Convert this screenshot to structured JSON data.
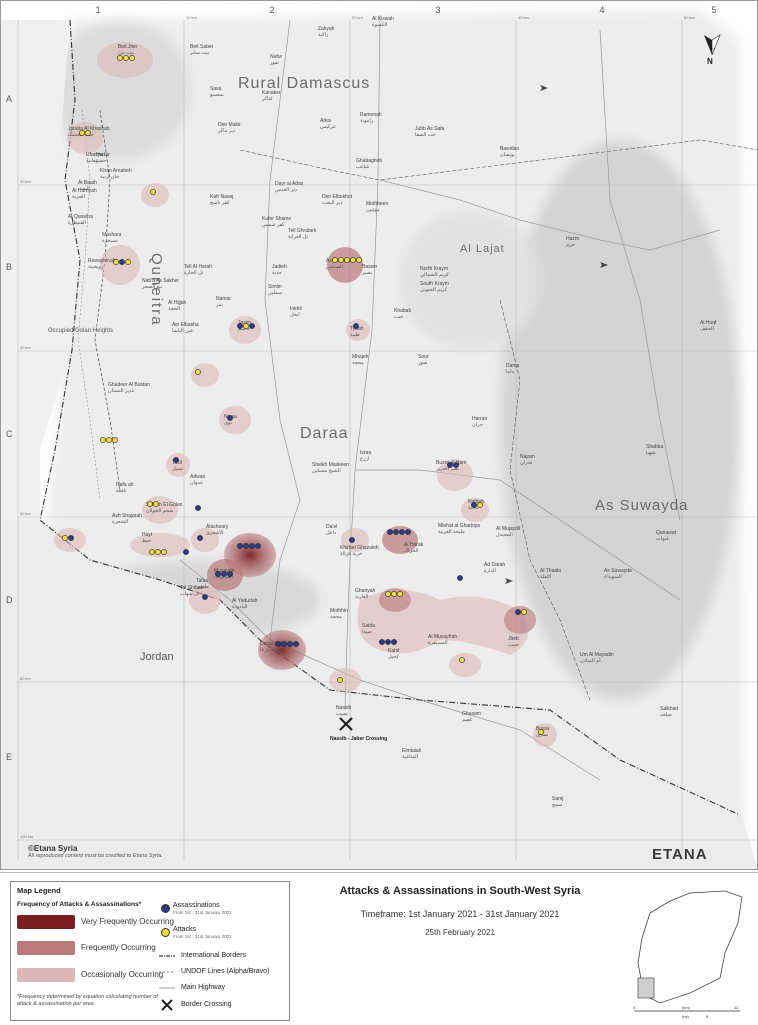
{
  "map": {
    "grid_cols": [
      "1",
      "2",
      "3",
      "4",
      "5"
    ],
    "grid_rows": [
      "A",
      "B",
      "C",
      "D",
      "E"
    ],
    "km_top": [
      "10 km",
      "20 km",
      "40 km",
      "60 km"
    ],
    "km_side": [
      "20 km",
      "40 km",
      "60 km",
      "80 km",
      "100 km"
    ],
    "regions": [
      "Rural Damascus",
      "Quneitra",
      "Daraa",
      "As Suwayda",
      "Al Lajat",
      "Jordan",
      "Occupied Golan Heights"
    ],
    "places": [
      {
        "en": "Beit Jinn",
        "ar": "بيت جن"
      },
      {
        "en": "Beit Saber",
        "ar": "بيت سابر"
      },
      {
        "en": "Zakyah",
        "ar": "زاكية"
      },
      {
        "en": "Al Kiswah",
        "ar": "الكسوة"
      },
      {
        "en": "Nufur",
        "ar": "نفور"
      },
      {
        "en": "Kanaker",
        "ar": "كناكر"
      },
      {
        "en": "Sasa",
        "ar": "سعسع"
      },
      {
        "en": "Deir Makir",
        "ar": "دير ماكر"
      },
      {
        "en": "Arkis",
        "ar": "عركيس"
      },
      {
        "en": "Ramonah",
        "ar": "رامونة"
      },
      {
        "en": "Jubb As Safa",
        "ar": "جب الصفا"
      },
      {
        "en": "Bawidan",
        "ar": "بويضان"
      },
      {
        "en": "Jubata Al Khashab",
        "ar": "جباتا الخشب"
      },
      {
        "en": "Ufaniya",
        "ar": "عفانية"
      },
      {
        "en": "Ghabagheb",
        "ar": "غباغب"
      },
      {
        "en": "Hadar",
        "ar": "حضر"
      },
      {
        "en": "Khan Arnabeh",
        "ar": "خان أرنبة"
      },
      {
        "en": "Al Hurriyah",
        "ar": "الحرية"
      },
      {
        "en": "Al Baath",
        "ar": "البعث"
      },
      {
        "en": "Kafr Nasej",
        "ar": "كفر ناسج"
      },
      {
        "en": "Dayr al Adas",
        "ar": "دير العدس"
      },
      {
        "en": "Deir Elbokhot",
        "ar": "دير البخت"
      },
      {
        "en": "Mothbeen",
        "ar": "موثبين"
      },
      {
        "en": "Al Quneitra",
        "ar": "القنيطرة"
      },
      {
        "en": "Mashara",
        "ar": "مسحرة"
      },
      {
        "en": "Kufer Shams",
        "ar": "كفر شمس"
      },
      {
        "en": "Tell Ghrabeh",
        "ar": "تل الغرابة"
      },
      {
        "en": "As Sanamayn",
        "ar": "الصنمين"
      },
      {
        "en": "Basser",
        "ar": "بصير"
      },
      {
        "en": "North Kraym",
        "ar": "كريم الشمالي"
      },
      {
        "en": "South Kraym",
        "ar": "كريم الجنوبي"
      },
      {
        "en": "Hazm",
        "ar": "حزم"
      },
      {
        "en": "Ruwayhinah",
        "ar": "رويحينة"
      },
      {
        "en": "Nab'a As Sakher",
        "ar": "نبع الصخر"
      },
      {
        "en": "Tell Al Harah",
        "ar": "تل الحارة"
      },
      {
        "en": "Jadieh",
        "ar": "جدية"
      },
      {
        "en": "Simlin",
        "ar": "سملين"
      },
      {
        "en": "Namar",
        "ar": "نمر"
      },
      {
        "en": "Inkhil",
        "ar": "انخل"
      },
      {
        "en": "Khabab",
        "ar": "خبب"
      },
      {
        "en": "Al Hijjah",
        "ar": "الحجة"
      },
      {
        "en": "Jasim",
        "ar": "جاسم"
      },
      {
        "en": "Tybah",
        "ar": "طيبة"
      },
      {
        "en": "Ain Elbasha",
        "ar": "عين الباشا"
      },
      {
        "en": "Mhajeh",
        "ar": "محجة"
      },
      {
        "en": "Sour",
        "ar": "صور"
      },
      {
        "en": "Dama",
        "ar": "داما"
      },
      {
        "en": "Al Huqf",
        "ar": "الحقف"
      },
      {
        "en": "Ghadeer Al Bustan",
        "ar": "غدير البستان"
      },
      {
        "en": "Nawa",
        "ar": "نوى"
      },
      {
        "en": "Al Yadudah",
        "ar": "اليادودة"
      },
      {
        "en": "Sheikh Maskeen",
        "ar": "الشيخ مسكين"
      },
      {
        "en": "Izraa",
        "ar": "ازرع"
      },
      {
        "en": "Harran",
        "ar": "حران"
      },
      {
        "en": "Najran",
        "ar": "نجران"
      },
      {
        "en": "Shahba",
        "ar": "شهبا"
      },
      {
        "en": "Tasil",
        "ar": "تسيل"
      },
      {
        "en": "Adwan",
        "ar": "عدوان"
      },
      {
        "en": "Nafa ah",
        "ar": "نافعة"
      },
      {
        "en": "Saham El Golan",
        "ar": "سحم الجولان"
      },
      {
        "en": "Ash Shajarah",
        "ar": "الشجرة"
      },
      {
        "en": "Busra al Harir",
        "ar": "بصر الحرير"
      },
      {
        "en": "Mlehat al Gharbiya",
        "ar": "مليحة الغربية"
      },
      {
        "en": "Da'el",
        "ar": "داعل"
      },
      {
        "en": "Khirbet Ghazaleh",
        "ar": "خربة غزالة"
      },
      {
        "en": "Hayt",
        "ar": "حيط"
      },
      {
        "en": "Alasheary",
        "ar": "الأشعري"
      },
      {
        "en": "Tafas",
        "ar": "طفس"
      },
      {
        "en": "Muzayrib",
        "ar": "المزيريب"
      },
      {
        "en": "Tal Shihab",
        "ar": "تل شهاب"
      },
      {
        "en": "Al Harak",
        "ar": "الحراك"
      },
      {
        "en": "Ghariyah",
        "ar": "الغارية"
      },
      {
        "en": "Nahtah",
        "ar": "ناحتة"
      },
      {
        "en": "Al Mujaydil",
        "ar": "المجيدل"
      },
      {
        "en": "Ad Darah",
        "ar": "الدارة"
      },
      {
        "en": "Al Thaala",
        "ar": "الثعلة"
      },
      {
        "en": "As Suwayda",
        "ar": "السويداء"
      },
      {
        "en": "Qanawat",
        "ar": "قنوات"
      },
      {
        "en": "Daraa City",
        "ar": "مدينة درعا"
      },
      {
        "en": "Saida",
        "ar": "صيدا"
      },
      {
        "en": "Kahil",
        "ar": "كحيل"
      },
      {
        "en": "Al Musayfrah",
        "ar": "المسيفرة"
      },
      {
        "en": "Jbeb",
        "ar": "جبيب"
      },
      {
        "en": "Salkhad",
        "ar": "صلخد"
      },
      {
        "en": "Um Al Mayadin",
        "ar": "أم المياذن"
      },
      {
        "en": "Nassib",
        "ar": "نصيب"
      },
      {
        "en": "Ghasam",
        "ar": "غصم"
      },
      {
        "en": "Busra",
        "ar": "بصرى"
      },
      {
        "en": "Elmtaiah",
        "ar": "المتاعية"
      },
      {
        "en": "Samj",
        "ar": "سمج"
      },
      {
        "en": "Mothhin",
        "ar": "محجة"
      }
    ],
    "crossing_label": "Nassib - Jaber Crossing",
    "north_label": "N"
  },
  "copyright": {
    "title": "©Etana Syria",
    "note": "All reproduced content must be credited to Etana Syria."
  },
  "logo_text": "ETANA",
  "legend": {
    "title": "Map Legend",
    "frequency_title": "Frequency of Attacks & Assassinations*",
    "levels": [
      {
        "label": "Very Frequently Occurring",
        "color": "#7a1f22"
      },
      {
        "label": "Frequently Occurring",
        "color": "#b97a7c"
      },
      {
        "label": "Occasionally Occurring",
        "color": "#dcb7b8"
      }
    ],
    "note": "*Frequency determined by equation calculating number of attack & assassination per area.",
    "assassinations_label": "Assassinations",
    "assassinations_sub": "From 1st - 31st January 2021",
    "attacks_label": "Attacks",
    "attacks_sub": "From 1st - 31st January 2021",
    "borders_label": "International Borders",
    "undof_label": "UNDOF Lines (Alpha/Bravo)",
    "highway_label": "Main Highway",
    "crossing_label": "Border Crossing",
    "assassination_color": "#2a3c8a",
    "attack_color": "#f2e03a"
  },
  "title": "Attacks & Assassinations in South-West Syria",
  "timeframe": "Timeframe: 1st January 2021 - 31st January 2021",
  "date": "25th February 2021",
  "inset": {
    "scale": [
      "0",
      "(km)",
      "12",
      "(mi)",
      "6"
    ]
  }
}
